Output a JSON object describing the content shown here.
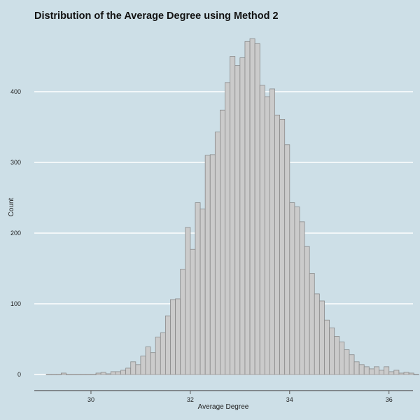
{
  "chart_data": {
    "type": "bar",
    "title": "Distribution of the Average Degree using Method 2",
    "xlabel": "Average Degree",
    "ylabel": "Count",
    "xlim": [
      29.0,
      36.3
    ],
    "ylim": [
      0,
      490
    ],
    "x_ticks": [
      "30",
      "32",
      "34",
      "36"
    ],
    "y_ticks": [
      "0",
      "100",
      "200",
      "300",
      "400"
    ],
    "grid": "horizontal",
    "bin_start": 29.1,
    "bin_width": 0.1,
    "counts": [
      0,
      0,
      0,
      2,
      0,
      0,
      0,
      0,
      0,
      0,
      2,
      3,
      1,
      4,
      4,
      6,
      9,
      18,
      14,
      26,
      39,
      31,
      53,
      59,
      83,
      106,
      107,
      149,
      208,
      177,
      243,
      234,
      310,
      311,
      343,
      374,
      413,
      450,
      437,
      448,
      471,
      475,
      468,
      409,
      393,
      404,
      367,
      361,
      325,
      243,
      237,
      216,
      181,
      143,
      114,
      104,
      77,
      66,
      54,
      46,
      35,
      28,
      18,
      14,
      11,
      8,
      11,
      6,
      11,
      4,
      6,
      2,
      3,
      2,
      0
    ]
  }
}
